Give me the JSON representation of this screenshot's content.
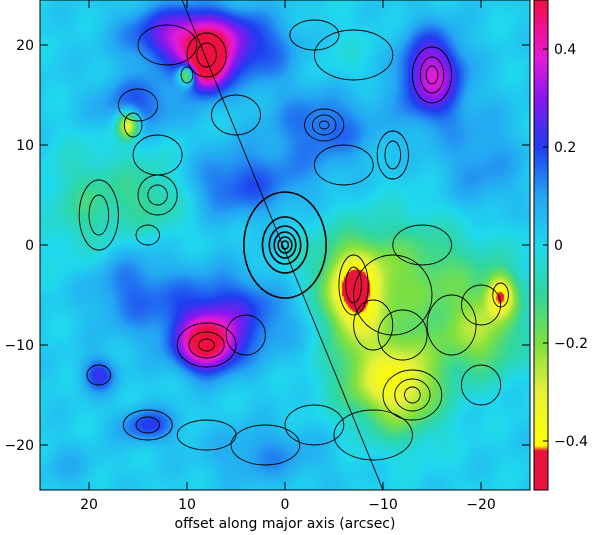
{
  "chart_data": {
    "type": "heatmap",
    "title": "",
    "xlabel": "offset along major axis (arcsec)",
    "ylabel": "",
    "xlim": [
      25,
      -25
    ],
    "ylim": [
      -24.5,
      24.5
    ],
    "x_ticks": [
      20,
      10,
      0,
      -10,
      -20
    ],
    "x_tick_labels": [
      "20",
      "10",
      "0",
      "−10",
      "−20"
    ],
    "y_ticks": [
      20,
      10,
      0,
      -10,
      -20
    ],
    "y_tick_labels": [
      "20",
      "10",
      "0",
      "−10",
      "−20"
    ],
    "colorbar": {
      "range": [
        -0.5,
        0.5
      ],
      "ticks": [
        0.4,
        0.2,
        0,
        -0.2,
        -0.4
      ],
      "tick_labels": [
        "0.4",
        "0.2",
        "0",
        "−0.2",
        "−0.4"
      ],
      "stops": [
        {
          "value": -0.5,
          "color": "#e8143c"
        },
        {
          "value": -0.42,
          "color": "#e8143c"
        },
        {
          "value": -0.41,
          "color": "#ffff00"
        },
        {
          "value": -0.3,
          "color": "#e6f23a"
        },
        {
          "value": -0.2,
          "color": "#7fe040"
        },
        {
          "value": -0.1,
          "color": "#30d6a0"
        },
        {
          "value": 0.0,
          "color": "#20d8ee"
        },
        {
          "value": 0.1,
          "color": "#24a6f2"
        },
        {
          "value": 0.2,
          "color": "#1f3ef0"
        },
        {
          "value": 0.3,
          "color": "#8a16ee"
        },
        {
          "value": 0.38,
          "color": "#e21cd8"
        },
        {
          "value": 0.45,
          "color": "#f0108a"
        },
        {
          "value": 0.5,
          "color": "#ee1040"
        }
      ]
    },
    "background_value": 0.02,
    "features": [
      {
        "x": 8,
        "y": 18,
        "value": 0.5,
        "sx": 1.4,
        "sy": 1.8
      },
      {
        "x": 10,
        "y": 21,
        "value": 0.3,
        "sx": 4.0,
        "sy": 2.0
      },
      {
        "x": 5,
        "y": 19.5,
        "value": 0.18,
        "sx": 4.5,
        "sy": 2.5
      },
      {
        "x": 10,
        "y": 17,
        "value": -0.45,
        "sx": 0.6,
        "sy": 0.7
      },
      {
        "x": 15,
        "y": 14,
        "value": 0.16,
        "sx": 3.0,
        "sy": 2.0
      },
      {
        "x": 16,
        "y": 12,
        "value": -0.4,
        "sx": 0.8,
        "sy": 1.0
      },
      {
        "x": -15,
        "y": 17,
        "value": 0.35,
        "sx": 2.2,
        "sy": 3.0
      },
      {
        "x": -5,
        "y": 18,
        "value": -0.05,
        "sx": 3.0,
        "sy": 3.0
      },
      {
        "x": -4,
        "y": 12,
        "value": 0.15,
        "sx": 4.0,
        "sy": 3.0
      },
      {
        "x": -20,
        "y": 8,
        "value": 0.1,
        "sx": 3.0,
        "sy": 4.0
      },
      {
        "x": 5,
        "y": 6,
        "value": 0.16,
        "sx": 5.0,
        "sy": 2.5
      },
      {
        "x": 8,
        "y": -10,
        "value": 0.45,
        "sx": 2.0,
        "sy": 1.8
      },
      {
        "x": 6,
        "y": -7,
        "value": 0.22,
        "sx": 5.0,
        "sy": 3.0
      },
      {
        "x": 16,
        "y": -4,
        "value": 0.12,
        "sx": 3.0,
        "sy": 3.0
      },
      {
        "x": 19,
        "y": -13,
        "value": 0.2,
        "sx": 1.2,
        "sy": 1.2
      },
      {
        "x": 14,
        "y": -18,
        "value": 0.18,
        "sx": 2.0,
        "sy": 1.2
      },
      {
        "x": 2,
        "y": -21,
        "value": 0.1,
        "sx": 4.0,
        "sy": 2.0
      },
      {
        "x": -12,
        "y": -3,
        "value": -0.2,
        "sx": 7.0,
        "sy": 4.0
      },
      {
        "x": -7,
        "y": -5,
        "value": -0.38,
        "sx": 2.0,
        "sy": 3.0
      },
      {
        "x": -12,
        "y": -14,
        "value": -0.32,
        "sx": 3.0,
        "sy": 3.5
      },
      {
        "x": -20,
        "y": -9,
        "value": -0.22,
        "sx": 3.0,
        "sy": 3.0
      },
      {
        "x": -22,
        "y": -5,
        "value": -0.32,
        "sx": 1.0,
        "sy": 1.5
      },
      {
        "x": -8,
        "y": -13,
        "value": -0.14,
        "sx": 3.0,
        "sy": 3.0
      },
      {
        "x": 20,
        "y": 4,
        "value": -0.12,
        "sx": 3.0,
        "sy": 4.0
      },
      {
        "x": 13,
        "y": 5,
        "value": -0.15,
        "sx": 3.0,
        "sy": 3.0
      },
      {
        "x": 22,
        "y": -22,
        "value": 0.05,
        "sx": 2.0,
        "sy": 1.5
      }
    ],
    "contours": [
      {
        "x": 0,
        "y": 0,
        "rx": 4.2,
        "ry": 5.3
      },
      {
        "x": 0,
        "y": 0,
        "rx": 2.3,
        "ry": 2.8
      },
      {
        "x": 0,
        "y": 0,
        "rx": 1.6,
        "ry": 1.9
      },
      {
        "x": 0,
        "y": 0,
        "rx": 1.1,
        "ry": 1.3
      },
      {
        "x": 0,
        "y": 0,
        "rx": 0.7,
        "ry": 0.8
      },
      {
        "x": 0,
        "y": 0,
        "rx": 0.35,
        "ry": 0.4
      },
      {
        "x": -4,
        "y": 12,
        "rx": 2.0,
        "ry": 1.6
      },
      {
        "x": -4,
        "y": 12,
        "rx": 1.2,
        "ry": 1.0
      },
      {
        "x": -4,
        "y": 12,
        "rx": 0.5,
        "ry": 0.4
      },
      {
        "x": -6,
        "y": 8,
        "rx": 3.0,
        "ry": 2.0
      },
      {
        "x": -11,
        "y": 9,
        "rx": 1.6,
        "ry": 2.4
      },
      {
        "x": -11,
        "y": 9,
        "rx": 0.8,
        "ry": 1.4
      },
      {
        "x": -15,
        "y": 17,
        "rx": 2.0,
        "ry": 2.8
      },
      {
        "x": -15,
        "y": 17,
        "rx": 1.2,
        "ry": 1.8
      },
      {
        "x": -15,
        "y": 17,
        "rx": 0.6,
        "ry": 0.9
      },
      {
        "x": -7,
        "y": 19,
        "rx": 4.0,
        "ry": 2.5
      },
      {
        "x": -3,
        "y": 21,
        "rx": 2.5,
        "ry": 1.5
      },
      {
        "x": 8,
        "y": 19,
        "rx": 2.0,
        "ry": 2.2
      },
      {
        "x": 8,
        "y": 19,
        "rx": 1.0,
        "ry": 1.2
      },
      {
        "x": 10,
        "y": 17,
        "rx": 0.6,
        "ry": 0.8
      },
      {
        "x": 12,
        "y": 20,
        "rx": 3.0,
        "ry": 2.0
      },
      {
        "x": 5,
        "y": 13,
        "rx": 2.5,
        "ry": 2.0
      },
      {
        "x": 15,
        "y": 14,
        "rx": 2.0,
        "ry": 1.6
      },
      {
        "x": 15.5,
        "y": 12,
        "rx": 0.9,
        "ry": 1.2
      },
      {
        "x": 13,
        "y": 9,
        "rx": 2.5,
        "ry": 2.0
      },
      {
        "x": 19,
        "y": 3,
        "rx": 2.0,
        "ry": 3.5
      },
      {
        "x": 19,
        "y": 3,
        "rx": 1.0,
        "ry": 2.0
      },
      {
        "x": 13,
        "y": 5,
        "rx": 2.0,
        "ry": 2.0
      },
      {
        "x": 13,
        "y": 5,
        "rx": 1.0,
        "ry": 1.0
      },
      {
        "x": 14,
        "y": 1,
        "rx": 1.2,
        "ry": 1.0
      },
      {
        "x": 8,
        "y": -10,
        "rx": 3.0,
        "ry": 2.2
      },
      {
        "x": 8,
        "y": -10,
        "rx": 1.8,
        "ry": 1.3
      },
      {
        "x": 8,
        "y": -10,
        "rx": 0.8,
        "ry": 0.6
      },
      {
        "x": 4,
        "y": -9,
        "rx": 2.0,
        "ry": 2.0
      },
      {
        "x": 19,
        "y": -13,
        "rx": 1.2,
        "ry": 1.0
      },
      {
        "x": 14,
        "y": -18,
        "rx": 2.5,
        "ry": 1.5
      },
      {
        "x": 14,
        "y": -18,
        "rx": 1.2,
        "ry": 0.8
      },
      {
        "x": 8,
        "y": -19,
        "rx": 3.0,
        "ry": 1.5
      },
      {
        "x": 2,
        "y": -20,
        "rx": 3.5,
        "ry": 2.0
      },
      {
        "x": -3,
        "y": -18,
        "rx": 3.0,
        "ry": 2.0
      },
      {
        "x": -7,
        "y": -4,
        "rx": 1.5,
        "ry": 3.0
      },
      {
        "x": -7,
        "y": -4,
        "rx": 0.8,
        "ry": 1.8
      },
      {
        "x": -9,
        "y": -8,
        "rx": 2.0,
        "ry": 2.5
      },
      {
        "x": -11,
        "y": -5,
        "rx": 4.0,
        "ry": 4.0
      },
      {
        "x": -12,
        "y": -9,
        "rx": 2.5,
        "ry": 2.5
      },
      {
        "x": -13,
        "y": -15,
        "rx": 3.0,
        "ry": 2.5
      },
      {
        "x": -13,
        "y": -15,
        "rx": 1.8,
        "ry": 1.6
      },
      {
        "x": -13,
        "y": -15,
        "rx": 0.8,
        "ry": 0.8
      },
      {
        "x": -17,
        "y": -8,
        "rx": 2.5,
        "ry": 3.0
      },
      {
        "x": -20,
        "y": -6,
        "rx": 2.0,
        "ry": 2.0
      },
      {
        "x": -22,
        "y": -5,
        "rx": 0.8,
        "ry": 1.2
      },
      {
        "x": -14,
        "y": 0,
        "rx": 3.0,
        "ry": 2.0
      },
      {
        "x": -9,
        "y": -19,
        "rx": 4.0,
        "ry": 2.5
      },
      {
        "x": -20,
        "y": -14,
        "rx": 2.0,
        "ry": 2.0
      }
    ],
    "line": {
      "x1": 10.5,
      "y1": 24.5,
      "x2": -10,
      "y2": -24.5
    }
  }
}
